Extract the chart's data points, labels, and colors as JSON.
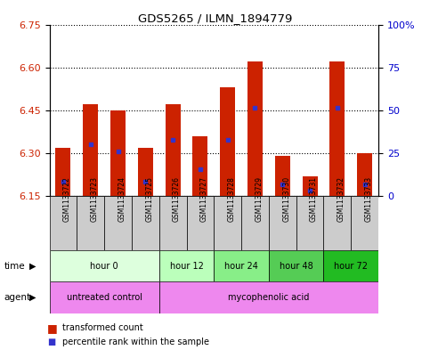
{
  "title": "GDS5265 / ILMN_1894779",
  "samples": [
    "GSM1133722",
    "GSM1133723",
    "GSM1133724",
    "GSM1133725",
    "GSM1133726",
    "GSM1133727",
    "GSM1133728",
    "GSM1133729",
    "GSM1133730",
    "GSM1133731",
    "GSM1133732",
    "GSM1133733"
  ],
  "bar_tops": [
    6.32,
    6.47,
    6.45,
    6.32,
    6.47,
    6.36,
    6.53,
    6.62,
    6.29,
    6.22,
    6.62,
    6.3
  ],
  "blue_positions": [
    6.2,
    6.33,
    6.305,
    6.2,
    6.345,
    6.245,
    6.345,
    6.46,
    6.19,
    6.17,
    6.46,
    6.19
  ],
  "bar_bottom": 6.15,
  "ylim_left": [
    6.15,
    6.75
  ],
  "yticks_left": [
    6.15,
    6.3,
    6.45,
    6.6,
    6.75
  ],
  "ylim_right": [
    0,
    100
  ],
  "yticks_right": [
    0,
    25,
    50,
    75,
    100
  ],
  "ytick_labels_right": [
    "0",
    "25",
    "50",
    "75",
    "100%"
  ],
  "bar_color": "#cc2200",
  "blue_color": "#3333cc",
  "bar_width": 0.55,
  "time_groups": [
    {
      "label": "hour 0",
      "start": 0,
      "end": 4,
      "color": "#ddffdd"
    },
    {
      "label": "hour 12",
      "start": 4,
      "end": 6,
      "color": "#bbffbb"
    },
    {
      "label": "hour 24",
      "start": 6,
      "end": 8,
      "color": "#88ee88"
    },
    {
      "label": "hour 48",
      "start": 8,
      "end": 10,
      "color": "#55cc55"
    },
    {
      "label": "hour 72",
      "start": 10,
      "end": 12,
      "color": "#22bb22"
    }
  ],
  "legend_red_label": "transformed count",
  "legend_blue_label": "percentile rank within the sample",
  "time_label": "time",
  "agent_label": "agent",
  "bg_color": "#ffffff",
  "left_axis_color": "#cc2200",
  "right_axis_color": "#0000cc",
  "untreated_color": "#ee88ee",
  "acid_color": "#ee88ee",
  "sample_bg_color": "#cccccc"
}
